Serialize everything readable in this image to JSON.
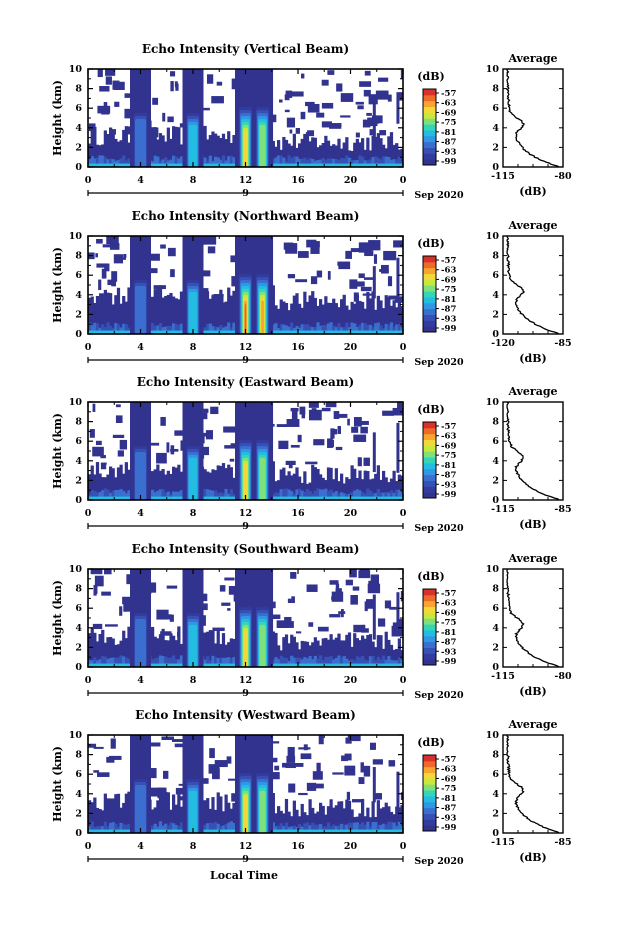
{
  "footer": {
    "xlabel": "Local Time"
  },
  "colorbar": {
    "unit": "(dB)",
    "labels": [
      "-57",
      "-63",
      "-69",
      "-75",
      "-81",
      "-87",
      "-93",
      "-99"
    ],
    "colors": [
      "#31338f",
      "#333c9e",
      "#3650b5",
      "#3a6fd0",
      "#2f97e3",
      "#22bde0",
      "#33d7b8",
      "#7fe07c",
      "#c8e83c",
      "#f4d83a",
      "#f7a52f",
      "#ee6a2a",
      "#d9302a"
    ]
  },
  "chart_data": [
    {
      "type": "heatmap",
      "title": "Echo Intensity (Vertical Beam)",
      "ylabel": "Height (km)",
      "xticks": [
        "0",
        "4",
        "8",
        "12",
        "16",
        "20",
        "0"
      ],
      "yticks": [
        "0",
        "2",
        "4",
        "6",
        "8",
        "10"
      ],
      "xlim": [
        0,
        24
      ],
      "ylim": [
        0,
        10
      ],
      "date_marker": "9",
      "date_label": "Sep 2020",
      "convective_cells_hours": [
        4,
        8,
        12,
        13.3
      ],
      "average": {
        "title": "Average",
        "xlabel": "(dB)",
        "xticks": [
          "-115",
          "-80"
        ],
        "yticks": [
          "0",
          "2",
          "4",
          "6",
          "8",
          "10"
        ]
      }
    },
    {
      "type": "heatmap",
      "title": "Echo Intensity (Northward Beam)",
      "ylabel": "Height (km)",
      "xticks": [
        "0",
        "4",
        "8",
        "12",
        "16",
        "20",
        "0"
      ],
      "yticks": [
        "0",
        "2",
        "4",
        "6",
        "8",
        "10"
      ],
      "xlim": [
        0,
        24
      ],
      "ylim": [
        0,
        10
      ],
      "date_marker": "9",
      "date_label": "Sep 2020",
      "convective_cells_hours": [
        4,
        8,
        12,
        13.3
      ],
      "average": {
        "title": "Average",
        "xlabel": "(dB)",
        "xticks": [
          "-120",
          "-85"
        ],
        "yticks": [
          "0",
          "2",
          "4",
          "6",
          "8",
          "10"
        ]
      }
    },
    {
      "type": "heatmap",
      "title": "Echo Intensity (Eastward Beam)",
      "ylabel": "Height (km)",
      "xticks": [
        "0",
        "4",
        "8",
        "12",
        "16",
        "20",
        "0"
      ],
      "yticks": [
        "0",
        "2",
        "4",
        "6",
        "8",
        "10"
      ],
      "xlim": [
        0,
        24
      ],
      "ylim": [
        0,
        10
      ],
      "date_marker": "9",
      "date_label": "Sep 2020",
      "convective_cells_hours": [
        4,
        8,
        12,
        13.3
      ],
      "average": {
        "title": "Average",
        "xlabel": "(dB)",
        "xticks": [
          "-115",
          "-85"
        ],
        "yticks": [
          "0",
          "2",
          "4",
          "6",
          "8",
          "10"
        ]
      }
    },
    {
      "type": "heatmap",
      "title": "Echo Intensity (Southward Beam)",
      "ylabel": "Height (km)",
      "xticks": [
        "0",
        "4",
        "8",
        "12",
        "16",
        "20",
        "0"
      ],
      "yticks": [
        "0",
        "2",
        "4",
        "6",
        "8",
        "10"
      ],
      "xlim": [
        0,
        24
      ],
      "ylim": [
        0,
        10
      ],
      "date_marker": "9",
      "date_label": "Sep 2020",
      "convective_cells_hours": [
        4,
        8,
        12,
        13.3
      ],
      "average": {
        "title": "Average",
        "xlabel": "(dB)",
        "xticks": [
          "-115",
          "-80"
        ],
        "yticks": [
          "0",
          "2",
          "4",
          "6",
          "8",
          "10"
        ]
      }
    },
    {
      "type": "heatmap",
      "title": "Echo Intensity (Westward Beam)",
      "ylabel": "Height (km)",
      "xticks": [
        "0",
        "4",
        "8",
        "12",
        "16",
        "20",
        "0"
      ],
      "yticks": [
        "0",
        "2",
        "4",
        "6",
        "8",
        "10"
      ],
      "xlim": [
        0,
        24
      ],
      "ylim": [
        0,
        10
      ],
      "date_marker": "9",
      "date_label": "Sep 2020",
      "convective_cells_hours": [
        4,
        8,
        12,
        13.3
      ],
      "average": {
        "title": "Average",
        "xlabel": "(dB)",
        "xticks": [
          "-115",
          "-85"
        ],
        "yticks": [
          "0",
          "2",
          "4",
          "6",
          "8",
          "10"
        ]
      }
    }
  ]
}
